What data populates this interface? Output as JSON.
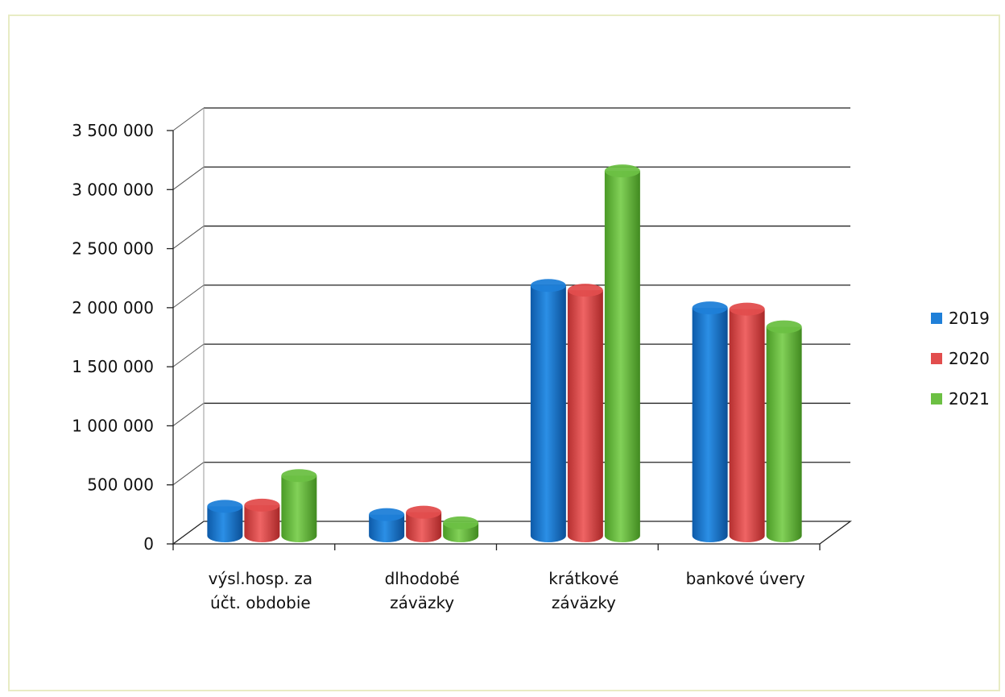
{
  "chart_data": {
    "type": "bar",
    "categories": [
      [
        "výsl.hosp. za",
        "účt. obdobie"
      ],
      [
        "dlhodobé",
        "záväzky"
      ],
      [
        "krátkové",
        "záväzky"
      ],
      [
        "bankové úvery"
      ]
    ],
    "series": [
      {
        "name": "2019",
        "color": "#1f7fd8",
        "values": [
          250000,
          180000,
          2120000,
          1930000
        ]
      },
      {
        "name": "2020",
        "color": "#e24d4d",
        "values": [
          260000,
          200000,
          2080000,
          1920000
        ]
      },
      {
        "name": "2021",
        "color": "#6cc043",
        "values": [
          510000,
          110000,
          3090000,
          1770000
        ]
      }
    ],
    "y_ticks": [
      "0",
      "500 000",
      "1 000 000",
      "1 500 000",
      "2 000 000",
      "2 500 000",
      "3 000 000",
      "3 500 000"
    ],
    "ylim": [
      0,
      3500000
    ],
    "grid": true,
    "legend_position": "right"
  }
}
